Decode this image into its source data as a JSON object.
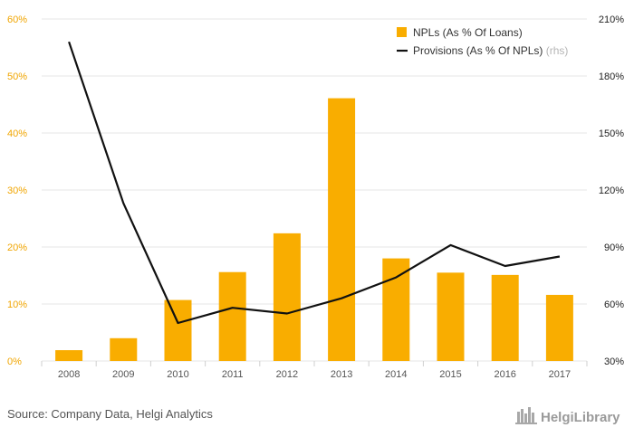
{
  "chart_data": {
    "type": "bar",
    "categories": [
      "2008",
      "2009",
      "2010",
      "2011",
      "2012",
      "2013",
      "2014",
      "2015",
      "2016",
      "2017"
    ],
    "series": [
      {
        "name": "NPLs (As % Of Loans)",
        "type": "bar",
        "axis": "left",
        "values": [
          1.9,
          4.0,
          10.7,
          15.6,
          22.4,
          46.1,
          18.0,
          15.5,
          15.1,
          11.6
        ]
      },
      {
        "name": "Provisions (As % Of NPLs)",
        "rhs_tag": "(rhs)",
        "type": "line",
        "axis": "right",
        "values": [
          198,
          113,
          50,
          58,
          55,
          63,
          74,
          91,
          80,
          85
        ]
      }
    ],
    "y_left": {
      "min": 0,
      "max": 60,
      "ticks": [
        "0%",
        "10%",
        "20%",
        "30%",
        "40%",
        "50%",
        "60%"
      ]
    },
    "y_right": {
      "min": 30,
      "max": 210,
      "ticks": [
        "30%",
        "60%",
        "90%",
        "120%",
        "150%",
        "180%",
        "210%"
      ]
    },
    "grid": "horizontal",
    "legend": "top-right",
    "colors": {
      "bar": "#f9ad00",
      "line": "#111111",
      "grid": "#e6e6e6",
      "left_ticks": "#f0a500"
    }
  },
  "footer": {
    "source": "Source: Company Data, Helgi Analytics",
    "logo_text": "HelgiLibrary",
    "logo_icon": "skyline-icon"
  }
}
